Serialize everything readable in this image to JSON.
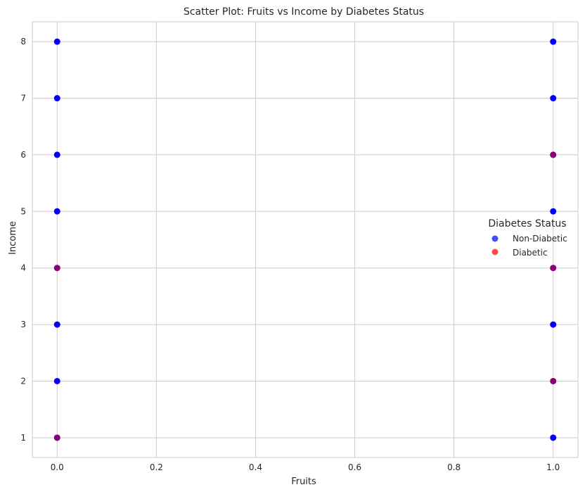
{
  "chart_data": {
    "type": "scatter",
    "title": "Scatter Plot: Fruits vs Income by Diabetes Status",
    "xlabel": "Fruits",
    "ylabel": "Income",
    "xlim": [
      -0.05,
      1.05
    ],
    "ylim": [
      0.65,
      8.35
    ],
    "xticks": [
      "0.0",
      "0.2",
      "0.4",
      "0.6",
      "0.8",
      "1.0"
    ],
    "yticks": [
      "1",
      "2",
      "3",
      "4",
      "5",
      "6",
      "7",
      "8"
    ],
    "grid": true,
    "legend": {
      "title": "Diabetes Status",
      "placement": "center-right",
      "entries": [
        "Non-Diabetic",
        "Diabetic"
      ]
    },
    "series": [
      {
        "name": "Non-Diabetic",
        "color": "#0000ff",
        "points": [
          {
            "x": 0,
            "y": 8
          },
          {
            "x": 0,
            "y": 7
          },
          {
            "x": 0,
            "y": 6
          },
          {
            "x": 0,
            "y": 5
          },
          {
            "x": 0,
            "y": 4
          },
          {
            "x": 0,
            "y": 3
          },
          {
            "x": 0,
            "y": 2
          },
          {
            "x": 0,
            "y": 1
          },
          {
            "x": 1,
            "y": 8
          },
          {
            "x": 1,
            "y": 7
          },
          {
            "x": 1,
            "y": 6
          },
          {
            "x": 1,
            "y": 5
          },
          {
            "x": 1,
            "y": 4
          },
          {
            "x": 1,
            "y": 3
          },
          {
            "x": 1,
            "y": 2
          },
          {
            "x": 1,
            "y": 1
          }
        ]
      },
      {
        "name": "Diabetic",
        "color": "#ff0000",
        "points": [
          {
            "x": 0,
            "y": 4
          },
          {
            "x": 0,
            "y": 1
          },
          {
            "x": 1,
            "y": 6
          },
          {
            "x": 1,
            "y": 4
          },
          {
            "x": 1,
            "y": 2
          }
        ]
      }
    ]
  }
}
